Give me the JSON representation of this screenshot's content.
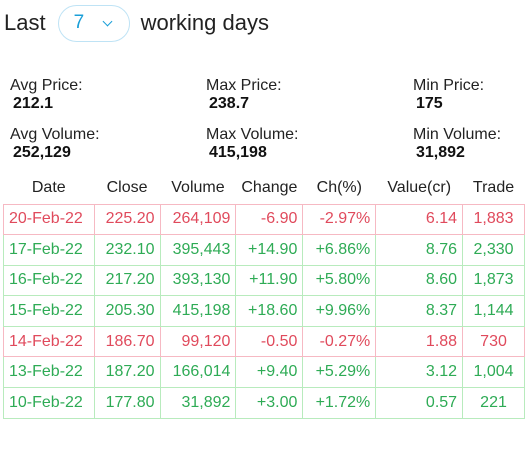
{
  "header": {
    "prefix": "Last",
    "days_value": "7",
    "suffix": "working days"
  },
  "stats": {
    "avg_price": {
      "label": "Avg Price:",
      "value": "212.1"
    },
    "max_price": {
      "label": "Max Price:",
      "value": "238.7"
    },
    "min_price": {
      "label": "Min Price:",
      "value": "175"
    },
    "avg_volume": {
      "label": "Avg Volume:",
      "value": "252,129"
    },
    "max_volume": {
      "label": "Max Volume:",
      "value": "415,198"
    },
    "min_volume": {
      "label": "Min Volume:",
      "value": "31,892"
    }
  },
  "table": {
    "columns": [
      "Date",
      "Close",
      "Volume",
      "Change",
      "Ch(%)",
      "Value(cr)",
      "Trade"
    ],
    "rows": [
      {
        "date": "20-Feb-22",
        "close": "225.20",
        "volume": "264,109",
        "change": "-6.90",
        "pct": "-2.97%",
        "value": "6.14",
        "trade": "1,883",
        "dir": "down"
      },
      {
        "date": "17-Feb-22",
        "close": "232.10",
        "volume": "395,443",
        "change": "+14.90",
        "pct": "+6.86%",
        "value": "8.76",
        "trade": "2,330",
        "dir": "up"
      },
      {
        "date": "16-Feb-22",
        "close": "217.20",
        "volume": "393,130",
        "change": "+11.90",
        "pct": "+5.80%",
        "value": "8.60",
        "trade": "1,873",
        "dir": "up"
      },
      {
        "date": "15-Feb-22",
        "close": "205.30",
        "volume": "415,198",
        "change": "+18.60",
        "pct": "+9.96%",
        "value": "8.37",
        "trade": "1,144",
        "dir": "up"
      },
      {
        "date": "14-Feb-22",
        "close": "186.70",
        "volume": "99,120",
        "change": "-0.50",
        "pct": "-0.27%",
        "value": "1.88",
        "trade": "730",
        "dir": "down"
      },
      {
        "date": "13-Feb-22",
        "close": "187.20",
        "volume": "166,014",
        "change": "+9.40",
        "pct": "+5.29%",
        "value": "3.12",
        "trade": "1,004",
        "dir": "up"
      },
      {
        "date": "10-Feb-22",
        "close": "177.80",
        "volume": "31,892",
        "change": "+3.00",
        "pct": "+1.72%",
        "value": "0.57",
        "trade": "221",
        "dir": "up"
      }
    ]
  },
  "colors": {
    "up": "#2eab55",
    "down": "#e04a5c",
    "accent": "#1a9fd8"
  }
}
